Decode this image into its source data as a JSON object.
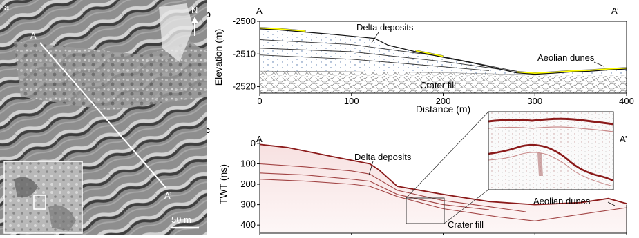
{
  "panel_a": {
    "label": "a",
    "north": "N",
    "point_a": "A",
    "point_a_prime": "A’",
    "scale_bar": "50 m"
  },
  "panel_b": {
    "label": "b",
    "end_left": "A",
    "end_right": "A’",
    "annotations": {
      "delta": "Delta deposits",
      "aeolian": "Aeolian dunes",
      "crater": "Crater fill"
    }
  },
  "panel_c": {
    "label": "c",
    "end_left": "A",
    "end_right": "A’",
    "annotations": {
      "delta": "Delta deposits",
      "aeolian": "Aeolian dunes",
      "crater": "Crater fill"
    }
  },
  "colors": {
    "dune_yellow": "#ffff00",
    "radar_red": "#8b1a1a",
    "radar_fill": "#f6dcdc"
  },
  "chart_data": [
    {
      "type": "area",
      "panel": "b",
      "xlabel": "Distance (m)",
      "ylabel": "Elevation (m)",
      "xlim": [
        0,
        400
      ],
      "ylim": [
        -2522,
        -2500
      ],
      "xticks": [
        0,
        100,
        200,
        300,
        400
      ],
      "yticks": [
        -2500,
        -2510,
        -2520
      ],
      "surface": {
        "x": [
          0,
          20,
          50,
          80,
          110,
          125,
          140,
          170,
          200,
          230,
          260,
          280,
          300,
          320,
          340,
          360,
          380,
          400
        ],
        "y": [
          -2502.3,
          -2502.6,
          -2503.3,
          -2504.0,
          -2504.8,
          -2505.2,
          -2507.3,
          -2509.3,
          -2511.0,
          -2512.6,
          -2514.5,
          -2515.8,
          -2516.2,
          -2515.9,
          -2515.5,
          -2515.3,
          -2514.9,
          -2514.6
        ]
      },
      "layer_boundaries": [
        {
          "x": [
            0,
            100,
            200,
            280
          ],
          "y": [
            -2505.6,
            -2507.1,
            -2510.8,
            -2515.3
          ]
        },
        {
          "x": [
            0,
            100,
            200,
            260,
            300
          ],
          "y": [
            -2508.2,
            -2509.3,
            -2512.3,
            -2514.6,
            -2516.0
          ]
        },
        {
          "x": [
            0,
            100,
            200,
            250
          ],
          "y": [
            -2510.3,
            -2511.6,
            -2513.9,
            -2515.1
          ]
        }
      ],
      "crater_fill_top": {
        "x": [
          0,
          100,
          200,
          300,
          400
        ],
        "y": [
          -2515.2,
          -2515.4,
          -2515.7,
          -2516.3,
          -2516.3
        ]
      }
    },
    {
      "type": "line",
      "panel": "c",
      "ylabel": "TWT (ns)",
      "ylim": [
        440,
        -20
      ],
      "yticks": [
        0,
        100,
        200,
        300,
        400
      ],
      "xlim": [
        0,
        400
      ],
      "reflectors": [
        {
          "x": [
            0,
            30,
            80,
            120,
            130,
            150,
            200,
            250,
            300,
            350,
            380,
            400
          ],
          "y": [
            5,
            20,
            65,
            100,
            130,
            210,
            250,
            285,
            300,
            290,
            270,
            295
          ]
        },
        {
          "x": [
            0,
            50,
            100,
            120,
            150,
            200,
            250,
            290
          ],
          "y": [
            100,
            115,
            135,
            150,
            230,
            280,
            310,
            335
          ]
        },
        {
          "x": [
            0,
            50,
            100,
            120,
            150,
            200,
            250
          ],
          "y": [
            145,
            155,
            175,
            185,
            250,
            300,
            325
          ]
        },
        {
          "x": [
            0,
            50,
            100,
            120,
            150,
            200,
            260,
            300,
            400
          ],
          "y": [
            175,
            185,
            200,
            210,
            260,
            320,
            360,
            380,
            315
          ]
        }
      ]
    }
  ]
}
